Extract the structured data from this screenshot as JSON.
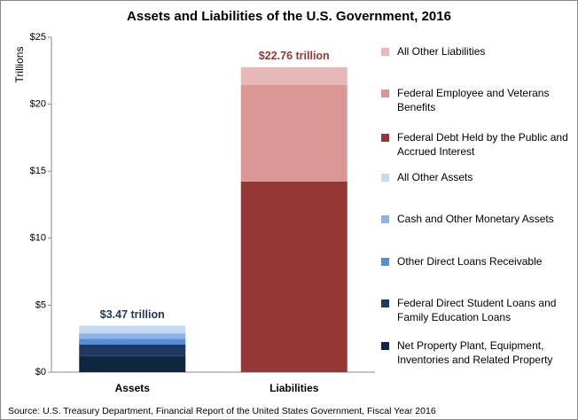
{
  "chart_data": {
    "type": "stacked_bar",
    "title": "Assets and Liabilities of the U.S. Government, 2016",
    "y_label": "Trillions",
    "categories": [
      "Assets",
      "Liabilities"
    ],
    "series": [
      {
        "name": "All Other Liabilities",
        "color": "#e6b8b7",
        "values": [
          null,
          1.33
        ]
      },
      {
        "name": "Federal Employee and Veterans Benefits",
        "color": "#da9694",
        "values": [
          null,
          7.21
        ]
      },
      {
        "name": "Federal Debt Held by the Public and Accrued Interest",
        "color": "#953735",
        "values": [
          null,
          14.22
        ]
      },
      {
        "name": "All Other Assets",
        "color": "#c5d9f1",
        "values": [
          0.57,
          null
        ]
      },
      {
        "name": "Cash and Other Monetary Assets",
        "color": "#8db4e2",
        "values": [
          0.4,
          null
        ]
      },
      {
        "name": "Other Direct Loans Receivable",
        "color": "#558ed5",
        "values": [
          0.45,
          null
        ]
      },
      {
        "name": "Federal Direct Student Loans and Family Education Loans",
        "color": "#1f3864",
        "values": [
          0.85,
          null
        ]
      },
      {
        "name": "Net Property Plant, Equipment, Inventories and Related Property",
        "color": "#10253f",
        "values": [
          1.2,
          null
        ]
      }
    ],
    "total_labels": [
      {
        "text": "$3.47 trillion",
        "value": 3.47,
        "color": "#1f3864"
      },
      {
        "text": "$22.76 trillion",
        "value": 22.76,
        "color": "#953735"
      }
    ],
    "ylim": [
      0,
      25
    ],
    "yticks": [
      {
        "value": 0,
        "label": "$0"
      },
      {
        "value": 5,
        "label": "$5"
      },
      {
        "value": 10,
        "label": "$10"
      },
      {
        "value": 15,
        "label": "$15"
      },
      {
        "value": 20,
        "label": "$20"
      },
      {
        "value": 25,
        "label": "$25"
      }
    ],
    "source": "Source: U.S. Treasury Department, Financial Report of the United States Government, Fiscal Year 2016"
  }
}
